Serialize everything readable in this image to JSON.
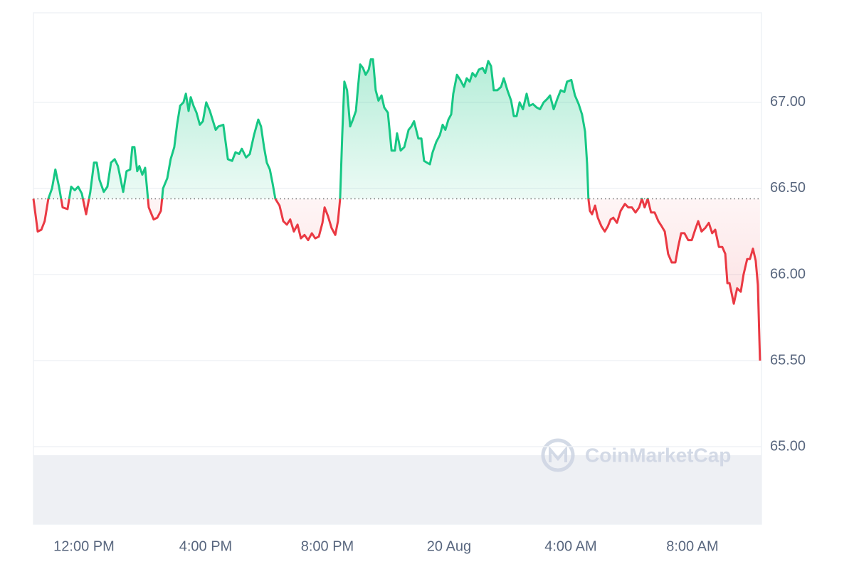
{
  "chart_data": {
    "type": "line",
    "x": [
      10.34,
      10.48,
      10.6,
      10.71,
      10.83,
      10.95,
      11.06,
      11.18,
      11.3,
      11.46,
      11.58,
      11.7,
      11.81,
      11.93,
      12.07,
      12.21,
      12.33,
      12.42,
      12.51,
      12.65,
      12.77,
      12.89,
      13.01,
      13.12,
      13.29,
      13.4,
      13.52,
      13.59,
      13.66,
      13.75,
      13.82,
      13.92,
      14.01,
      14.13,
      14.29,
      14.41,
      14.53,
      14.6,
      14.74,
      14.85,
      14.97,
      15.06,
      15.16,
      15.27,
      15.35,
      15.44,
      15.51,
      15.6,
      15.7,
      15.81,
      15.91,
      16.02,
      16.14,
      16.33,
      16.42,
      16.58,
      16.73,
      16.87,
      16.98,
      17.1,
      17.19,
      17.33,
      17.45,
      17.59,
      17.73,
      17.82,
      17.92,
      18.01,
      18.11,
      18.2,
      18.29,
      18.43,
      18.55,
      18.67,
      18.78,
      18.9,
      19.02,
      19.13,
      19.25,
      19.37,
      19.49,
      19.6,
      19.72,
      19.84,
      19.91,
      20.02,
      20.14,
      20.26,
      20.35,
      20.42,
      20.49,
      20.56,
      20.65,
      20.75,
      20.84,
      20.94,
      21.01,
      21.08,
      21.17,
      21.26,
      21.36,
      21.43,
      21.5,
      21.59,
      21.68,
      21.78,
      21.87,
      21.99,
      22.11,
      22.22,
      22.29,
      22.41,
      22.53,
      22.67,
      22.76,
      22.85,
      22.99,
      23.09,
      23.18,
      23.27,
      23.37,
      23.46,
      23.58,
      23.7,
      23.79,
      23.88,
      23.98,
      24.07,
      24.14,
      24.26,
      24.37,
      24.49,
      24.58,
      24.68,
      24.77,
      24.87,
      24.98,
      25.1,
      25.19,
      25.29,
      25.38,
      25.47,
      25.59,
      25.71,
      25.8,
      25.92,
      26.04,
      26.13,
      26.22,
      26.32,
      26.43,
      26.55,
      26.64,
      26.76,
      26.88,
      26.99,
      27.11,
      27.23,
      27.32,
      27.44,
      27.56,
      27.67,
      27.79,
      27.88,
      28.02,
      28.14,
      28.26,
      28.37,
      28.47,
      28.54,
      28.58,
      28.63,
      28.7,
      28.8,
      28.89,
      29.01,
      29.12,
      29.22,
      29.31,
      29.4,
      29.52,
      29.64,
      29.78,
      29.89,
      30.01,
      30.13,
      30.25,
      30.34,
      30.43,
      30.53,
      30.64,
      30.76,
      30.88,
      30.99,
      31.09,
      31.2,
      31.32,
      31.44,
      31.53,
      31.63,
      31.74,
      31.86,
      31.98,
      32.09,
      32.19,
      32.3,
      32.42,
      32.54,
      32.65,
      32.75,
      32.87,
      32.98,
      33.08,
      33.15,
      33.22,
      33.36,
      33.47,
      33.59,
      33.68,
      33.8,
      33.89,
      33.99,
      34.08,
      34.15,
      34.22
    ],
    "values": [
      66.44,
      66.25,
      66.26,
      66.31,
      66.44,
      66.5,
      66.61,
      66.51,
      66.39,
      66.38,
      66.51,
      66.49,
      66.51,
      66.47,
      66.35,
      66.48,
      66.65,
      66.65,
      66.55,
      66.48,
      66.51,
      66.65,
      66.67,
      66.63,
      66.48,
      66.6,
      66.61,
      66.74,
      66.74,
      66.6,
      66.63,
      66.58,
      66.62,
      66.39,
      66.32,
      66.33,
      66.37,
      66.5,
      66.56,
      66.67,
      66.74,
      66.87,
      66.98,
      67.0,
      67.05,
      66.95,
      67.03,
      66.98,
      66.94,
      66.87,
      66.89,
      67.0,
      66.95,
      66.84,
      66.86,
      66.87,
      66.67,
      66.66,
      66.71,
      66.7,
      66.73,
      66.68,
      66.7,
      66.81,
      66.9,
      66.86,
      66.74,
      66.65,
      66.61,
      66.53,
      66.44,
      66.4,
      66.31,
      66.29,
      66.32,
      66.25,
      66.29,
      66.21,
      66.23,
      66.2,
      66.24,
      66.21,
      66.22,
      66.3,
      66.39,
      66.34,
      66.27,
      66.23,
      66.31,
      66.44,
      66.81,
      67.12,
      67.07,
      66.86,
      66.9,
      66.95,
      67.09,
      67.22,
      67.2,
      67.16,
      67.19,
      67.25,
      67.25,
      67.07,
      67.01,
      67.04,
      66.97,
      66.94,
      66.72,
      66.72,
      66.82,
      66.72,
      66.74,
      66.84,
      66.86,
      66.89,
      66.79,
      66.79,
      66.66,
      66.65,
      66.64,
      66.71,
      66.77,
      66.81,
      66.87,
      66.84,
      66.9,
      66.93,
      67.05,
      67.16,
      67.13,
      67.09,
      67.14,
      67.12,
      67.17,
      67.15,
      67.19,
      67.2,
      67.17,
      67.24,
      67.21,
      67.07,
      67.07,
      67.09,
      67.14,
      67.07,
      67.01,
      66.92,
      66.92,
      67.0,
      66.96,
      67.05,
      66.98,
      66.99,
      66.97,
      66.96,
      67.0,
      67.02,
      67.04,
      66.96,
      67.02,
      67.07,
      67.06,
      67.12,
      67.13,
      67.04,
      66.99,
      66.93,
      66.83,
      66.64,
      66.44,
      66.37,
      66.35,
      66.4,
      66.33,
      66.28,
      66.25,
      66.28,
      66.32,
      66.33,
      66.3,
      66.37,
      66.41,
      66.39,
      66.39,
      66.36,
      66.39,
      66.44,
      66.39,
      66.44,
      66.36,
      66.36,
      66.31,
      66.28,
      66.25,
      66.12,
      66.07,
      66.07,
      66.16,
      66.24,
      66.24,
      66.2,
      66.2,
      66.26,
      66.31,
      66.25,
      66.27,
      66.3,
      66.24,
      66.26,
      66.16,
      66.16,
      66.12,
      65.95,
      65.95,
      65.83,
      65.92,
      65.9,
      66.0,
      66.09,
      66.09,
      66.15,
      66.08,
      65.94,
      65.5
    ],
    "baseline": 66.44,
    "color_up": "#16c784",
    "color_down": "#ea3943",
    "xlim": [
      10.34,
      34.27
    ],
    "xticks": [
      {
        "value": 12,
        "label": "12:00 PM"
      },
      {
        "value": 16,
        "label": "4:00 PM"
      },
      {
        "value": 20,
        "label": "8:00 PM"
      },
      {
        "value": 24,
        "label": "20 Aug"
      },
      {
        "value": 28,
        "label": "4:00 AM"
      },
      {
        "value": 32,
        "label": "8:00 AM"
      }
    ],
    "ylim": [
      64.55,
      67.52
    ],
    "yticks": [
      {
        "value": 65,
        "label": "65.00"
      },
      {
        "value": 65.5,
        "label": "65.50"
      },
      {
        "value": 66,
        "label": "66.00"
      },
      {
        "value": 66.5,
        "label": "66.50"
      },
      {
        "value": 67,
        "label": "67.00"
      }
    ],
    "grid": true,
    "watermark": "CoinMarketCap"
  }
}
